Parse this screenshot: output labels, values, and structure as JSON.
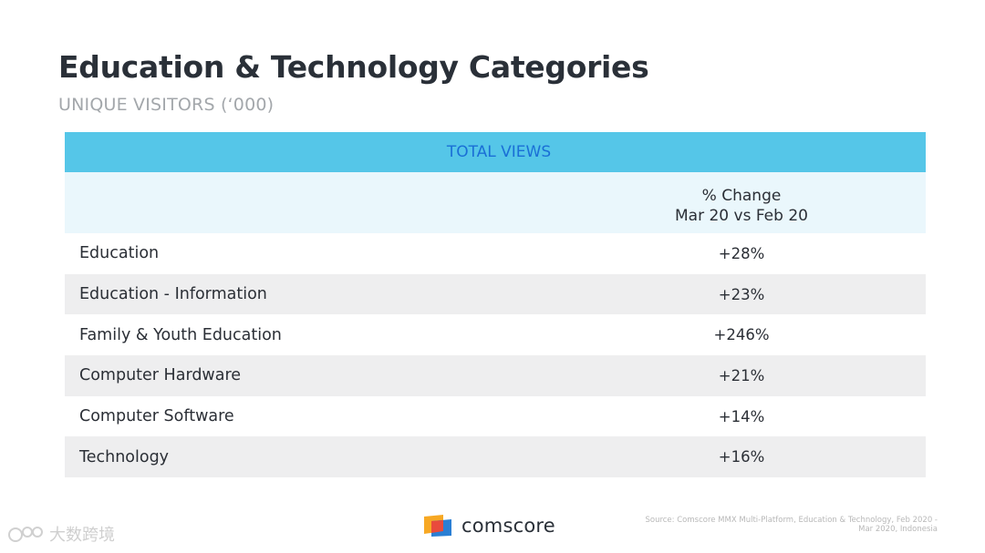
{
  "slide": {
    "title": "Education & Technology Categories",
    "subtitle": "UNIQUE VISITORS (‘000)"
  },
  "chart_data": {
    "type": "table",
    "header": "TOTAL VIEWS",
    "column_header": [
      "% Change",
      "Mar 20 vs Feb 20"
    ],
    "rows": [
      {
        "category": "Education",
        "change": "+28%"
      },
      {
        "category": "Education - Information",
        "change": "+23%"
      },
      {
        "category": "Family & Youth Education",
        "change": "+246%"
      },
      {
        "category": "Computer Hardware",
        "change": "+21%"
      },
      {
        "category": "Computer Software",
        "change": "+14%"
      },
      {
        "category": "Technology",
        "change": "+16%"
      }
    ]
  },
  "footer": {
    "brand": "comscore",
    "source_line1": "Source: Comscore MMX Multi-Platform, Education & Technology, Feb 2020 -",
    "source_line2": "Mar 2020, Indonesia",
    "watermark": "大数跨境"
  },
  "colors": {
    "header_band": "#55c6e8",
    "header_text": "#1a6fd6",
    "col_head_bg": "#eaf7fc",
    "row_shade": "#eeeeef"
  }
}
